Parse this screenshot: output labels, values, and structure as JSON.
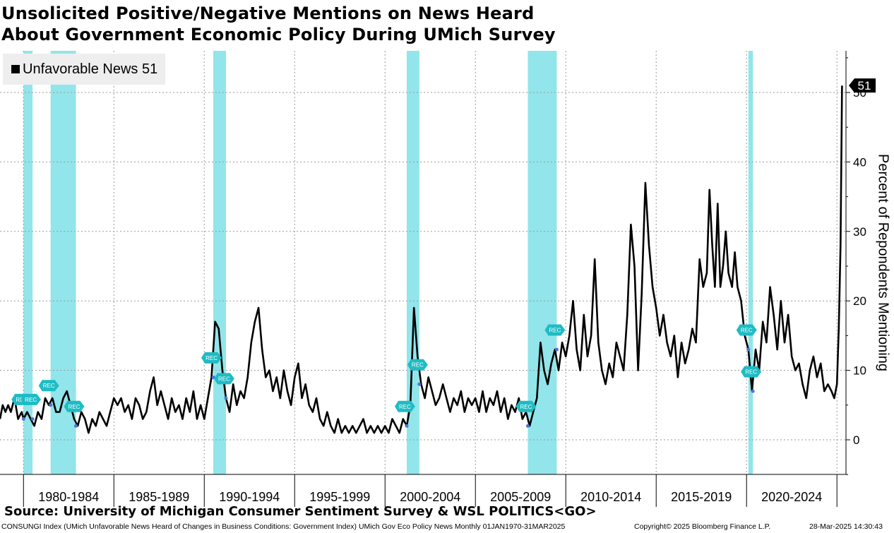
{
  "title": {
    "line1": "Unsolicited Positive/Negative Mentions on News Heard",
    "line2": "About Government Economic Policy During UMich Survey"
  },
  "legend": {
    "label": "Unfavorable News 51"
  },
  "source": "Source: University of Michigan Consumer Sentiment Survey & WSL POLITICS<GO>",
  "footer": {
    "left": "CONSUNGI Index (UMich Unfavorable News Heard of Changes in Business Conditions: Government Index) UMich Gov Eco Policy News  Monthly 01JAN1970-31MAR2025",
    "center": "Copyright© 2025 Bloomberg Finance L.P.",
    "right": "28-Mar-2025 14:30:43"
  },
  "colors": {
    "line": "#000000",
    "recession": "#7fe0e6",
    "rec_marker": "#1ebcc4",
    "point": "#4a76d8",
    "last_badge": "#000000"
  },
  "chart_data": {
    "type": "line",
    "ylabel": "Percent of Repondents Mentioning",
    "ylim": [
      -5,
      56
    ],
    "yticks": [
      0,
      10,
      20,
      30,
      40,
      50
    ],
    "xlim": [
      1978.7,
      2025.5
    ],
    "period_labels": [
      "1980-1984",
      "1985-1989",
      "1990-1994",
      "1995-1999",
      "2000-2004",
      "2005-2009",
      "2010-2014",
      "2015-2019",
      "2020-2024"
    ],
    "last_value_label": "51",
    "recessions": [
      [
        1980.0,
        1980.5
      ],
      [
        1981.5,
        1982.9
      ],
      [
        1990.5,
        1991.2
      ],
      [
        2001.2,
        2001.9
      ],
      [
        2007.9,
        2009.5
      ],
      [
        2020.1,
        2020.35
      ]
    ],
    "rec_label": "REC",
    "series": [
      {
        "name": "Unfavorable News",
        "points": [
          [
            1978.7,
            3
          ],
          [
            1978.85,
            5
          ],
          [
            1979.0,
            4
          ],
          [
            1979.15,
            5
          ],
          [
            1979.3,
            4
          ],
          [
            1979.5,
            6
          ],
          [
            1979.7,
            3
          ],
          [
            1979.9,
            4
          ],
          [
            1980.0,
            3
          ],
          [
            1980.2,
            4
          ],
          [
            1980.4,
            3
          ],
          [
            1980.6,
            2
          ],
          [
            1980.8,
            4
          ],
          [
            1981.0,
            3
          ],
          [
            1981.2,
            6
          ],
          [
            1981.4,
            5
          ],
          [
            1981.6,
            6
          ],
          [
            1981.8,
            4
          ],
          [
            1982.0,
            4
          ],
          [
            1982.2,
            6
          ],
          [
            1982.4,
            7
          ],
          [
            1982.6,
            5
          ],
          [
            1982.8,
            3
          ],
          [
            1983.0,
            2
          ],
          [
            1983.2,
            4
          ],
          [
            1983.4,
            3
          ],
          [
            1983.6,
            1
          ],
          [
            1983.8,
            3
          ],
          [
            1984.0,
            2
          ],
          [
            1984.2,
            4
          ],
          [
            1984.4,
            3
          ],
          [
            1984.6,
            2
          ],
          [
            1984.8,
            4
          ],
          [
            1985.0,
            6
          ],
          [
            1985.2,
            5
          ],
          [
            1985.4,
            6
          ],
          [
            1985.6,
            4
          ],
          [
            1985.8,
            5
          ],
          [
            1986.0,
            3
          ],
          [
            1986.2,
            6
          ],
          [
            1986.4,
            5
          ],
          [
            1986.6,
            3
          ],
          [
            1986.8,
            4
          ],
          [
            1987.0,
            7
          ],
          [
            1987.2,
            9
          ],
          [
            1987.4,
            5
          ],
          [
            1987.6,
            7
          ],
          [
            1987.8,
            5
          ],
          [
            1988.0,
            3
          ],
          [
            1988.2,
            6
          ],
          [
            1988.4,
            4
          ],
          [
            1988.6,
            5
          ],
          [
            1988.8,
            3
          ],
          [
            1989.0,
            6
          ],
          [
            1989.2,
            4
          ],
          [
            1989.4,
            7
          ],
          [
            1989.6,
            3
          ],
          [
            1989.8,
            5
          ],
          [
            1990.0,
            3
          ],
          [
            1990.2,
            6
          ],
          [
            1990.4,
            9
          ],
          [
            1990.6,
            17
          ],
          [
            1990.8,
            16
          ],
          [
            1991.0,
            10
          ],
          [
            1991.2,
            6
          ],
          [
            1991.4,
            4
          ],
          [
            1991.6,
            8
          ],
          [
            1991.8,
            5
          ],
          [
            1992.0,
            7
          ],
          [
            1992.2,
            6
          ],
          [
            1992.4,
            9
          ],
          [
            1992.6,
            14
          ],
          [
            1992.8,
            17
          ],
          [
            1993.0,
            19
          ],
          [
            1993.2,
            13
          ],
          [
            1993.4,
            9
          ],
          [
            1993.6,
            10
          ],
          [
            1993.8,
            7
          ],
          [
            1994.0,
            9
          ],
          [
            1994.2,
            6
          ],
          [
            1994.4,
            10
          ],
          [
            1994.6,
            7
          ],
          [
            1994.8,
            5
          ],
          [
            1995.0,
            9
          ],
          [
            1995.2,
            11
          ],
          [
            1995.4,
            6
          ],
          [
            1995.6,
            8
          ],
          [
            1995.8,
            5
          ],
          [
            1996.0,
            4
          ],
          [
            1996.2,
            6
          ],
          [
            1996.4,
            3
          ],
          [
            1996.6,
            2
          ],
          [
            1996.8,
            4
          ],
          [
            1997.0,
            2
          ],
          [
            1997.2,
            1
          ],
          [
            1997.4,
            3
          ],
          [
            1997.6,
            1
          ],
          [
            1997.8,
            2
          ],
          [
            1998.0,
            1
          ],
          [
            1998.2,
            2
          ],
          [
            1998.4,
            1
          ],
          [
            1998.6,
            2
          ],
          [
            1998.8,
            3
          ],
          [
            1999.0,
            1
          ],
          [
            1999.2,
            2
          ],
          [
            1999.4,
            1
          ],
          [
            1999.6,
            2
          ],
          [
            1999.8,
            1
          ],
          [
            2000.0,
            2
          ],
          [
            2000.2,
            1
          ],
          [
            2000.4,
            3
          ],
          [
            2000.6,
            2
          ],
          [
            2000.8,
            1
          ],
          [
            2001.0,
            3
          ],
          [
            2001.2,
            2
          ],
          [
            2001.4,
            5
          ],
          [
            2001.6,
            19
          ],
          [
            2001.8,
            12
          ],
          [
            2002.0,
            8
          ],
          [
            2002.2,
            6
          ],
          [
            2002.4,
            9
          ],
          [
            2002.6,
            7
          ],
          [
            2002.8,
            5
          ],
          [
            2003.0,
            6
          ],
          [
            2003.2,
            8
          ],
          [
            2003.4,
            6
          ],
          [
            2003.6,
            4
          ],
          [
            2003.8,
            6
          ],
          [
            2004.0,
            5
          ],
          [
            2004.2,
            7
          ],
          [
            2004.4,
            4
          ],
          [
            2004.6,
            6
          ],
          [
            2004.8,
            5
          ],
          [
            2005.0,
            6
          ],
          [
            2005.2,
            4
          ],
          [
            2005.4,
            7
          ],
          [
            2005.6,
            4
          ],
          [
            2005.8,
            6
          ],
          [
            2006.0,
            5
          ],
          [
            2006.2,
            7
          ],
          [
            2006.4,
            4
          ],
          [
            2006.6,
            6
          ],
          [
            2006.8,
            3
          ],
          [
            2007.0,
            5
          ],
          [
            2007.2,
            4
          ],
          [
            2007.4,
            6
          ],
          [
            2007.6,
            3
          ],
          [
            2007.8,
            4
          ],
          [
            2008.0,
            2
          ],
          [
            2008.2,
            4
          ],
          [
            2008.4,
            6
          ],
          [
            2008.6,
            14
          ],
          [
            2008.8,
            10
          ],
          [
            2009.0,
            8
          ],
          [
            2009.2,
            11
          ],
          [
            2009.4,
            13
          ],
          [
            2009.6,
            10
          ],
          [
            2009.8,
            14
          ],
          [
            2010.0,
            12
          ],
          [
            2010.2,
            15
          ],
          [
            2010.4,
            20
          ],
          [
            2010.6,
            13
          ],
          [
            2010.8,
            10
          ],
          [
            2011.0,
            18
          ],
          [
            2011.2,
            12
          ],
          [
            2011.4,
            15
          ],
          [
            2011.6,
            26
          ],
          [
            2011.8,
            14
          ],
          [
            2012.0,
            10
          ],
          [
            2012.2,
            8
          ],
          [
            2012.4,
            11
          ],
          [
            2012.6,
            9
          ],
          [
            2012.8,
            14
          ],
          [
            2013.0,
            12
          ],
          [
            2013.2,
            10
          ],
          [
            2013.4,
            18
          ],
          [
            2013.6,
            31
          ],
          [
            2013.8,
            25
          ],
          [
            2014.0,
            10
          ],
          [
            2014.2,
            21
          ],
          [
            2014.4,
            37
          ],
          [
            2014.6,
            28
          ],
          [
            2014.8,
            22
          ],
          [
            2015.0,
            19
          ],
          [
            2015.2,
            15
          ],
          [
            2015.4,
            18
          ],
          [
            2015.6,
            14
          ],
          [
            2015.8,
            12
          ],
          [
            2016.0,
            15
          ],
          [
            2016.2,
            9
          ],
          [
            2016.4,
            14
          ],
          [
            2016.6,
            11
          ],
          [
            2016.8,
            13
          ],
          [
            2017.0,
            16
          ],
          [
            2017.2,
            14
          ],
          [
            2017.4,
            26
          ],
          [
            2017.6,
            22
          ],
          [
            2017.8,
            24
          ],
          [
            2017.95,
            36
          ],
          [
            2018.1,
            28
          ],
          [
            2018.25,
            22
          ],
          [
            2018.4,
            34
          ],
          [
            2018.55,
            22
          ],
          [
            2018.7,
            25
          ],
          [
            2018.85,
            30
          ],
          [
            2019.0,
            24
          ],
          [
            2019.2,
            22
          ],
          [
            2019.35,
            27
          ],
          [
            2019.5,
            22
          ],
          [
            2019.7,
            20
          ],
          [
            2019.9,
            15
          ],
          [
            2020.1,
            13
          ],
          [
            2020.3,
            7
          ],
          [
            2020.5,
            13
          ],
          [
            2020.7,
            10
          ],
          [
            2020.9,
            17
          ],
          [
            2021.1,
            14
          ],
          [
            2021.3,
            22
          ],
          [
            2021.5,
            18
          ],
          [
            2021.7,
            13
          ],
          [
            2021.9,
            20
          ],
          [
            2022.1,
            14
          ],
          [
            2022.3,
            18
          ],
          [
            2022.5,
            12
          ],
          [
            2022.7,
            10
          ],
          [
            2022.9,
            11
          ],
          [
            2023.1,
            8
          ],
          [
            2023.3,
            6
          ],
          [
            2023.5,
            10
          ],
          [
            2023.7,
            12
          ],
          [
            2023.9,
            9
          ],
          [
            2024.1,
            11
          ],
          [
            2024.3,
            7
          ],
          [
            2024.5,
            8
          ],
          [
            2024.7,
            7
          ],
          [
            2024.85,
            6
          ],
          [
            2025.0,
            8
          ],
          [
            2025.1,
            16
          ],
          [
            2025.2,
            28
          ],
          [
            2025.28,
            51
          ]
        ]
      }
    ]
  }
}
